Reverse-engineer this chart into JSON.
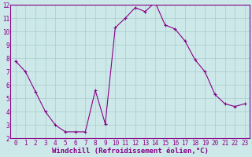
{
  "x": [
    0,
    1,
    2,
    3,
    4,
    5,
    6,
    7,
    8,
    9,
    10,
    11,
    12,
    13,
    14,
    15,
    16,
    17,
    18,
    19,
    20,
    21,
    22,
    23
  ],
  "y": [
    7.8,
    7.0,
    5.5,
    4.0,
    3.0,
    2.5,
    2.5,
    2.5,
    5.6,
    3.1,
    10.3,
    11.0,
    11.8,
    11.5,
    12.2,
    10.5,
    10.2,
    9.3,
    7.9,
    7.0,
    5.3,
    4.6,
    4.4,
    4.6
  ],
  "line_color": "#880088",
  "marker": "+",
  "bg_color": "#cce8e8",
  "grid_color": "#aacccc",
  "xlabel": "Windchill (Refroidissement éolien,°C)",
  "xlim": [
    -0.5,
    23.5
  ],
  "ylim": [
    2,
    12
  ],
  "xticks": [
    0,
    1,
    2,
    3,
    4,
    5,
    6,
    7,
    8,
    9,
    10,
    11,
    12,
    13,
    14,
    15,
    16,
    17,
    18,
    19,
    20,
    21,
    22,
    23
  ],
  "yticks": [
    2,
    3,
    4,
    5,
    6,
    7,
    8,
    9,
    10,
    11,
    12
  ],
  "tick_fontsize": 5.5,
  "xlabel_fontsize": 6.5,
  "purple": "#880088"
}
